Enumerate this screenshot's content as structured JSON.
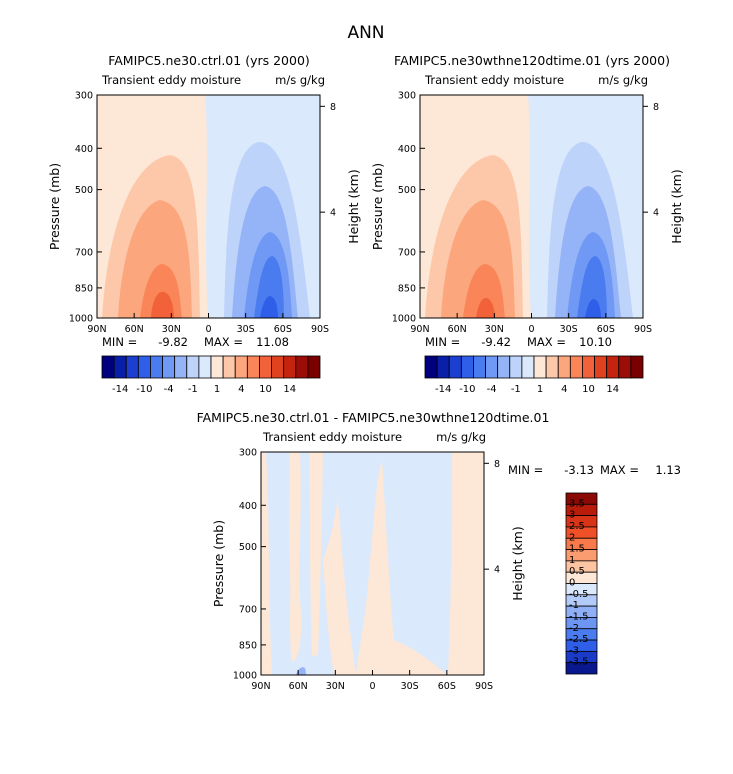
{
  "page_title": "ANN",
  "colors": {
    "scale": [
      "#00007f",
      "#0a1fa8",
      "#1c3fd0",
      "#2f5fe8",
      "#4a7cf0",
      "#6f99f4",
      "#95b4f7",
      "#bdd3fa",
      "#dbe9fd",
      "#fde7d6",
      "#fdc8a9",
      "#fca67d",
      "#f98559",
      "#f2623a",
      "#e0411f",
      "#c4230e",
      "#9b0d07",
      "#7a0000"
    ]
  },
  "chart_data": [
    {
      "type": "heatmap",
      "plot_type": "latitude-pressure contour",
      "title": "FAMIPC5.ne30.ctrl.01 (yrs 2000)",
      "subtitle_left": "Transient eddy moisture",
      "subtitle_right": "m/s g/kg",
      "ylabel": "Pressure (mb)",
      "ylabel_right": "Height (km)",
      "x_ticks": [
        "90N",
        "60N",
        "30N",
        "0",
        "30S",
        "60S",
        "90S"
      ],
      "y_ticks": [
        "300",
        "400",
        "500",
        "700",
        "850",
        "1000"
      ],
      "y_right_ticks": [
        "8",
        "4"
      ],
      "min": "-9.82",
      "max": "11.08",
      "min_label": "MIN =",
      "max_label": "MAX =",
      "colorbar_ticks": [
        "-14",
        "-10",
        "-4",
        "-1",
        "1",
        "4",
        "10",
        "14"
      ],
      "field": {
        "positive_center_lat": 35,
        "positive_peak": 11.08,
        "negative_center_lat": -53,
        "negative_peak": -9.82
      }
    },
    {
      "type": "heatmap",
      "plot_type": "latitude-pressure contour",
      "title": "FAMIPC5.ne30wthne120dtime.01 (yrs 2000)",
      "subtitle_left": "Transient eddy moisture",
      "subtitle_right": "m/s g/kg",
      "ylabel": "Pressure (mb)",
      "ylabel_right": "Height (km)",
      "x_ticks": [
        "90N",
        "60N",
        "30N",
        "0",
        "30S",
        "60S",
        "90S"
      ],
      "y_ticks": [
        "300",
        "400",
        "500",
        "700",
        "850",
        "1000"
      ],
      "y_right_ticks": [
        "8",
        "4"
      ],
      "min": "-9.42",
      "max": "10.10",
      "min_label": "MIN =",
      "max_label": "MAX =",
      "colorbar_ticks": [
        "-14",
        "-10",
        "-4",
        "-1",
        "1",
        "4",
        "10",
        "14"
      ],
      "field": {
        "positive_center_lat": 35,
        "positive_peak": 10.1,
        "negative_center_lat": -53,
        "negative_peak": -9.42
      }
    },
    {
      "type": "heatmap",
      "plot_type": "latitude-pressure contour difference",
      "title": "FAMIPC5.ne30.ctrl.01 - FAMIPC5.ne30wthne120dtime.01",
      "subtitle_left": "Transient eddy moisture",
      "subtitle_right": "m/s g/kg",
      "ylabel": "Pressure (mb)",
      "ylabel_right": "Height (km)",
      "x_ticks": [
        "90N",
        "60N",
        "30N",
        "0",
        "30S",
        "60S",
        "90S"
      ],
      "y_ticks": [
        "300",
        "400",
        "500",
        "700",
        "850",
        "1000"
      ],
      "y_right_ticks": [
        "8",
        "4"
      ],
      "min": "-3.13",
      "max": "1.13",
      "min_label": "MIN =",
      "max_label": "MAX =",
      "colorbar_ticks": [
        "3.5",
        "3",
        "2.5",
        "2",
        "1.5",
        "1",
        "0.5",
        "0",
        "-0.5",
        "-1",
        "-1.5",
        "-2",
        "-2.5",
        "-3",
        "-3.5"
      ],
      "field": {
        "dominant_value_range": [
          -0.5,
          0.5
        ]
      }
    }
  ]
}
